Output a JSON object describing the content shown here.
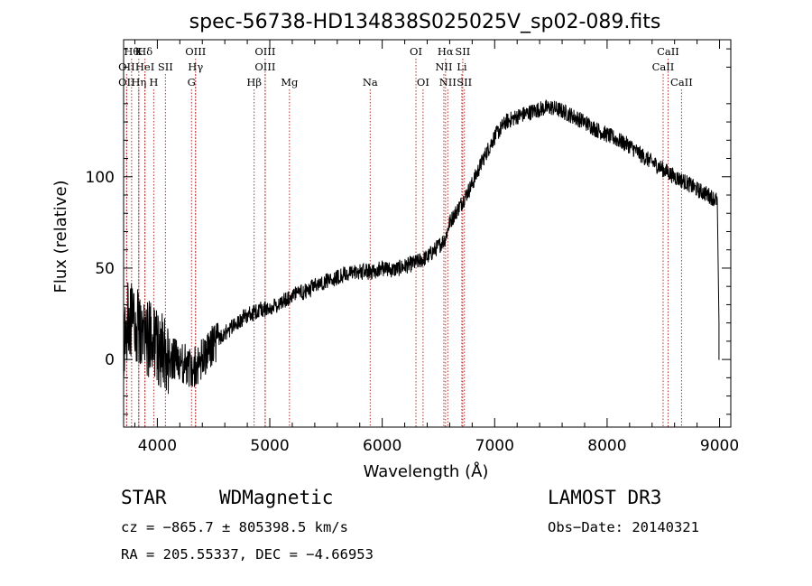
{
  "chart_data": {
    "type": "line",
    "title": "spec-56738-HD134838S025025V_sp02-089.fits",
    "xlabel": "Wavelength (Å)",
    "ylabel": "Flux (relative)",
    "xlim": [
      3700,
      9100
    ],
    "ylim": [
      -37,
      175
    ],
    "xticks": [
      {
        "value": 4000,
        "label": "4000"
      },
      {
        "value": 5000,
        "label": "5000"
      },
      {
        "value": 6000,
        "label": "6000"
      },
      {
        "value": 7000,
        "label": "7000"
      },
      {
        "value": 8000,
        "label": "8000"
      },
      {
        "value": 9000,
        "label": "9000"
      }
    ],
    "yticks": [
      {
        "value": 0,
        "label": "0"
      },
      {
        "value": 50,
        "label": "50"
      },
      {
        "value": 100,
        "label": "100"
      }
    ],
    "series": [
      {
        "name": "flux",
        "x": [
          3700,
          3750,
          3800,
          3850,
          3900,
          3950,
          4000,
          4050,
          4100,
          4150,
          4200,
          4250,
          4300,
          4350,
          4400,
          4450,
          4500,
          4600,
          4700,
          4800,
          4900,
          5000,
          5100,
          5200,
          5300,
          5400,
          5500,
          5600,
          5700,
          5800,
          5900,
          6000,
          6100,
          6200,
          6300,
          6400,
          6500,
          6560,
          6600,
          6650,
          6700,
          6800,
          6900,
          7000,
          7100,
          7200,
          7300,
          7400,
          7500,
          7600,
          7700,
          7800,
          7900,
          8000,
          8100,
          8200,
          8300,
          8400,
          8500,
          8600,
          8700,
          8800,
          8900,
          8980
        ],
        "y": [
          10,
          25,
          20,
          15,
          12,
          10,
          8,
          5,
          2,
          0,
          -2,
          -3,
          -5,
          -3,
          0,
          3,
          8,
          14,
          20,
          24,
          27,
          28,
          31,
          35,
          37,
          40,
          43,
          45,
          47,
          48,
          48,
          50,
          49,
          51,
          53,
          56,
          62,
          66,
          75,
          80,
          85,
          96,
          110,
          122,
          130,
          133,
          135,
          137,
          138,
          136,
          133,
          130,
          126,
          123,
          120,
          117,
          112,
          108,
          104,
          100,
          97,
          93,
          90,
          87
        ],
        "noise_region": [
          3700,
          4550
        ]
      }
    ],
    "lines_top": [
      {
        "w": 3771,
        "label": "Hθ"
      },
      {
        "w": 3835,
        "label": "K"
      },
      {
        "w": 3890,
        "label": "Hδ"
      },
      {
        "w": 4340,
        "label": "OIII"
      },
      {
        "w": 4959,
        "label": "OIII"
      },
      {
        "w": 6300,
        "label": "OI"
      },
      {
        "w": 6563,
        "label": "Hα"
      },
      {
        "w": 6716,
        "label": "SII"
      },
      {
        "w": 8542,
        "label": "CaII"
      }
    ],
    "lines_mid": [
      {
        "w": 3727,
        "label": "OII"
      },
      {
        "w": 3889,
        "label": "HeI"
      },
      {
        "w": 4072,
        "label": "SII"
      },
      {
        "w": 4340,
        "label": "Hγ"
      },
      {
        "w": 4959,
        "label": "OIII"
      },
      {
        "w": 6548,
        "label": "NII"
      },
      {
        "w": 6708,
        "label": "Li"
      },
      {
        "w": 8498,
        "label": "CaII"
      }
    ],
    "lines_bot": [
      {
        "w": 3727,
        "label": "OII"
      },
      {
        "w": 3835,
        "label": "Hη"
      },
      {
        "w": 3968,
        "label": "H"
      },
      {
        "w": 4304,
        "label": "G"
      },
      {
        "w": 4861,
        "label": "Hβ"
      },
      {
        "w": 5175,
        "label": "Mg"
      },
      {
        "w": 5893,
        "label": "Na"
      },
      {
        "w": 6363,
        "label": "OI"
      },
      {
        "w": 6583,
        "label": "NII"
      },
      {
        "w": 6731,
        "label": "SII"
      },
      {
        "w": 8662,
        "label": "CaII"
      }
    ]
  },
  "info": {
    "object_class": "STAR",
    "subclass": "WDMagnetic",
    "survey": "LAMOST DR3",
    "cz": "cz = −865.7 ± 805398.5 km/s",
    "obs_date": "Obs−Date: 20140321",
    "radec": "RA = 205.55337, DEC =  −4.66953"
  },
  "colors": {
    "axis": "#000000",
    "spectrum": "#000000",
    "lines": "#b03030"
  }
}
